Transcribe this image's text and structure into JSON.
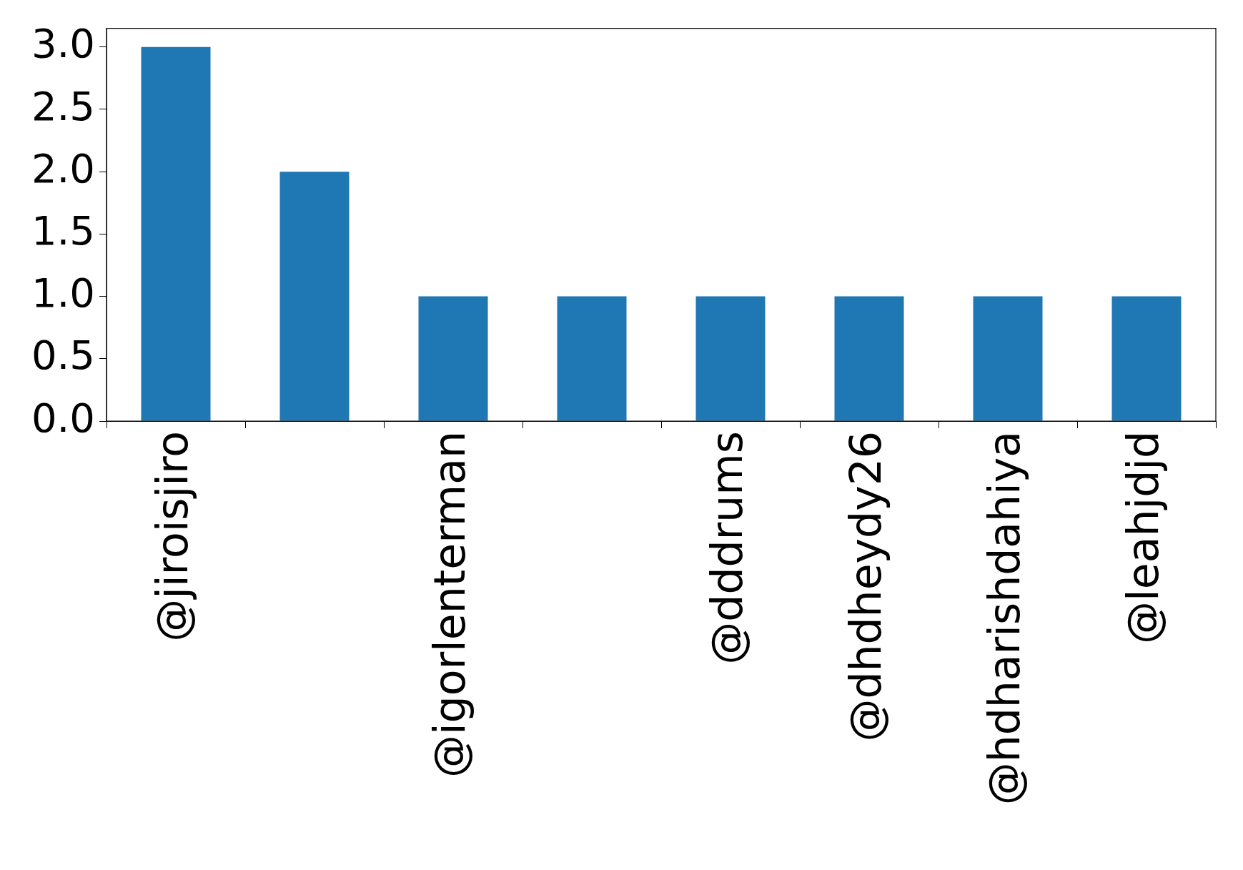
{
  "chart_data": {
    "type": "bar",
    "categories": [
      "@jiroisjiro",
      null,
      "@igorlenterman",
      null,
      "@dddrums",
      "@dhdheydy26",
      "@hdharishdahiya",
      "@leahjdjd"
    ],
    "values": [
      3,
      2,
      1,
      1,
      1,
      1,
      1,
      1
    ],
    "color": "#1f77b4",
    "ylim": [
      0,
      3.15
    ],
    "yticks": [
      {
        "value": 0,
        "label": "0.0"
      },
      0.5,
      {
        "value": 1,
        "label": "1.0"
      },
      1.5,
      {
        "value": 2,
        "label": "2.0"
      },
      2.5,
      {
        "value": 3,
        "label": "3.0"
      }
    ],
    "grid": false
  }
}
